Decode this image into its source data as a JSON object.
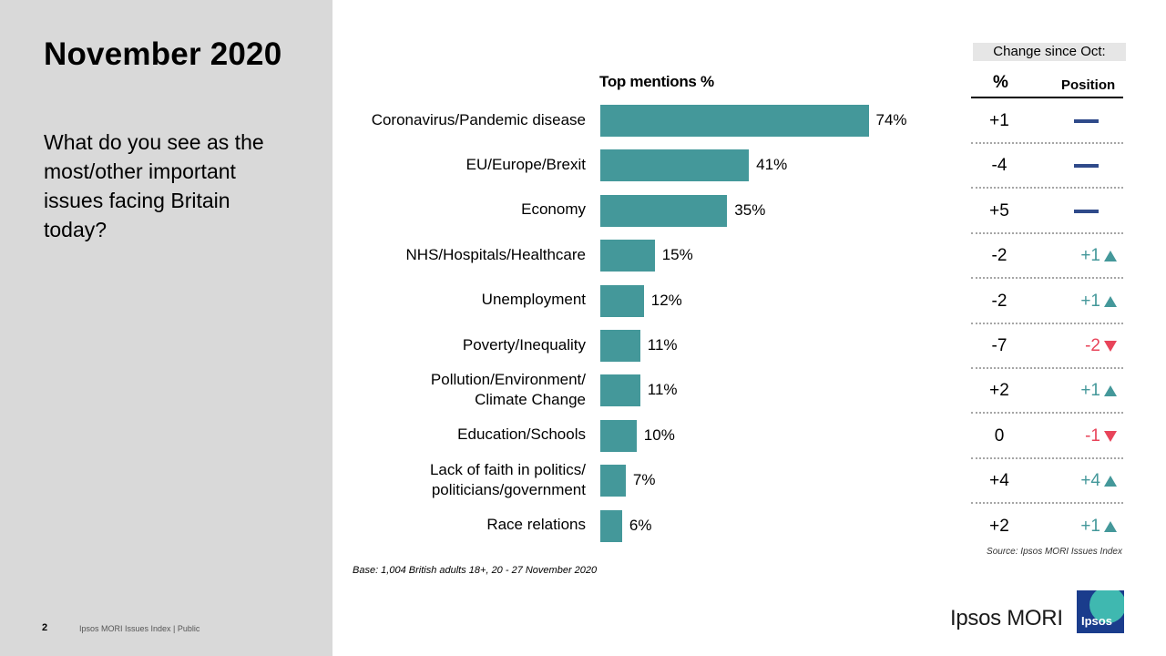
{
  "title": "November 2020",
  "question": "What do you see as the most/other important issues facing Britain today?",
  "footer": {
    "slide_number": "2",
    "text": "Ipsos MORI Issues Index | Public"
  },
  "change_header": "Change since Oct:",
  "col_pct_label": "%",
  "col_pos_label": "Position",
  "source": "Source: Ipsos MORI Issues Index",
  "base": "Base: 1,004 British adults 18+, 20 - 27 November 2020",
  "logo": {
    "text": "Ipsos MORI",
    "mark_text": "Ipsos"
  },
  "colors": {
    "bar": "#44989a",
    "up": "#44989a",
    "down": "#e8445a",
    "unchanged": "#2f4a8a",
    "panel": "#d9d9d9"
  },
  "chart_data": {
    "type": "bar",
    "orientation": "horizontal",
    "title": "Top mentions %",
    "categories": [
      [
        "Coronavirus/Pandemic disease"
      ],
      [
        "EU/Europe/Brexit"
      ],
      [
        "Economy"
      ],
      [
        "NHS/Hospitals/Healthcare"
      ],
      [
        "Unemployment"
      ],
      [
        "Poverty/Inequality"
      ],
      [
        "Pollution/Environment/",
        "Climate Change"
      ],
      [
        "Education/Schools"
      ],
      [
        "Lack of faith in politics/",
        "politicians/government"
      ],
      [
        "Race relations"
      ]
    ],
    "values": [
      74,
      41,
      35,
      15,
      12,
      11,
      11,
      10,
      7,
      6
    ],
    "value_labels": [
      "74%",
      "41%",
      "35%",
      "15%",
      "12%",
      "11%",
      "11%",
      "10%",
      "7%",
      "6%"
    ],
    "xlim": [
      0,
      100
    ],
    "change_pct": [
      "+1",
      "-4",
      "+5",
      "-2",
      "-2",
      "-7",
      "+2",
      "0",
      "+4",
      "+2"
    ],
    "position_change": [
      {
        "label": "",
        "direction": "same"
      },
      {
        "label": "",
        "direction": "same"
      },
      {
        "label": "",
        "direction": "same"
      },
      {
        "label": "+1",
        "direction": "up"
      },
      {
        "label": "+1",
        "direction": "up"
      },
      {
        "label": "-2",
        "direction": "down"
      },
      {
        "label": "+1",
        "direction": "up"
      },
      {
        "label": "-1",
        "direction": "down"
      },
      {
        "label": "+4",
        "direction": "up"
      },
      {
        "label": "+1",
        "direction": "up"
      }
    ]
  }
}
